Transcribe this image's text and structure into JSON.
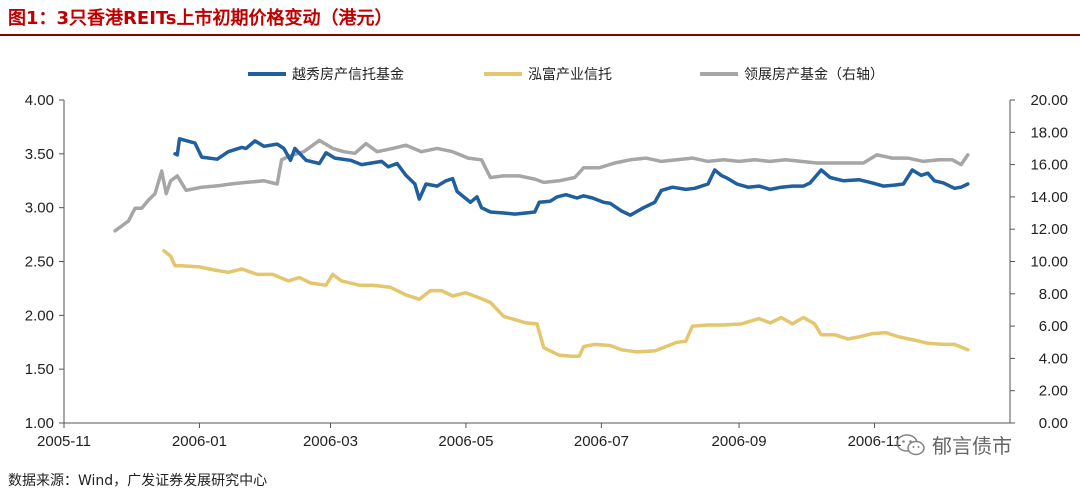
{
  "title": "图1：3只香港REITs上市初期价格变动（港元）",
  "source": "数据来源：Wind，广发证券发展研究中心",
  "watermark": "郁言债市",
  "chart_data": {
    "type": "line",
    "xlim": [
      "2005-11-01",
      "2007-01-01"
    ],
    "x_ticks": [
      "2005-11",
      "2006-01",
      "2006-03",
      "2006-05",
      "2006-07",
      "2006-09",
      "2006-11"
    ],
    "ylim_left": [
      1.0,
      4.0
    ],
    "y_ticks_left": [
      "1.00",
      "1.50",
      "2.00",
      "2.50",
      "3.00",
      "3.50",
      "4.00"
    ],
    "ylim_right": [
      0,
      20
    ],
    "y_ticks_right": [
      "0.00",
      "2.00",
      "4.00",
      "6.00",
      "8.00",
      "10.00",
      "12.00",
      "14.00",
      "16.00",
      "18.00",
      "20.00"
    ],
    "grid": false,
    "legend_position": "top",
    "series": [
      {
        "name": "越秀房产信托基金",
        "axis": "left",
        "color": "#1f5f9e",
        "points": [
          [
            "2005-12-21",
            3.5
          ],
          [
            "2005-12-22",
            3.49
          ],
          [
            "2005-12-23",
            3.64
          ],
          [
            "2005-12-30",
            3.6
          ],
          [
            "2006-01-02",
            3.47
          ],
          [
            "2006-01-09",
            3.45
          ],
          [
            "2006-01-14",
            3.52
          ],
          [
            "2006-01-20",
            3.56
          ],
          [
            "2006-01-22",
            3.55
          ],
          [
            "2006-01-26",
            3.62
          ],
          [
            "2006-01-30",
            3.57
          ],
          [
            "2006-02-05",
            3.59
          ],
          [
            "2006-02-08",
            3.55
          ],
          [
            "2006-02-11",
            3.44
          ],
          [
            "2006-02-13",
            3.55
          ],
          [
            "2006-02-18",
            3.44
          ],
          [
            "2006-02-24",
            3.41
          ],
          [
            "2006-02-27",
            3.51
          ],
          [
            "2006-03-03",
            3.46
          ],
          [
            "2006-03-10",
            3.44
          ],
          [
            "2006-03-15",
            3.4
          ],
          [
            "2006-03-24",
            3.43
          ],
          [
            "2006-03-27",
            3.38
          ],
          [
            "2006-03-31",
            3.41
          ],
          [
            "2006-04-04",
            3.3
          ],
          [
            "2006-04-08",
            3.22
          ],
          [
            "2006-04-10",
            3.08
          ],
          [
            "2006-04-13",
            3.22
          ],
          [
            "2006-04-18",
            3.2
          ],
          [
            "2006-04-22",
            3.25
          ],
          [
            "2006-04-25",
            3.27
          ],
          [
            "2006-04-27",
            3.15
          ],
          [
            "2006-04-30",
            3.1
          ],
          [
            "2006-05-03",
            3.05
          ],
          [
            "2006-05-06",
            3.1
          ],
          [
            "2006-05-08",
            3.0
          ],
          [
            "2006-05-12",
            2.96
          ],
          [
            "2006-05-18",
            2.95
          ],
          [
            "2006-05-23",
            2.94
          ],
          [
            "2006-05-28",
            2.95
          ],
          [
            "2006-06-01",
            2.96
          ],
          [
            "2006-06-03",
            3.05
          ],
          [
            "2006-06-08",
            3.06
          ],
          [
            "2006-06-11",
            3.1
          ],
          [
            "2006-06-15",
            3.12
          ],
          [
            "2006-06-20",
            3.09
          ],
          [
            "2006-06-23",
            3.11
          ],
          [
            "2006-06-27",
            3.09
          ],
          [
            "2006-07-02",
            3.05
          ],
          [
            "2006-07-05",
            3.04
          ],
          [
            "2006-07-10",
            2.97
          ],
          [
            "2006-07-14",
            2.93
          ],
          [
            "2006-07-20",
            3.0
          ],
          [
            "2006-07-25",
            3.05
          ],
          [
            "2006-07-28",
            3.16
          ],
          [
            "2006-08-02",
            3.19
          ],
          [
            "2006-08-08",
            3.17
          ],
          [
            "2006-08-12",
            3.18
          ],
          [
            "2006-08-18",
            3.22
          ],
          [
            "2006-08-21",
            3.35
          ],
          [
            "2006-08-24",
            3.3
          ],
          [
            "2006-08-27",
            3.27
          ],
          [
            "2006-08-31",
            3.22
          ],
          [
            "2006-09-05",
            3.19
          ],
          [
            "2006-09-10",
            3.2
          ],
          [
            "2006-09-15",
            3.17
          ],
          [
            "2006-09-20",
            3.19
          ],
          [
            "2006-09-25",
            3.2
          ],
          [
            "2006-09-30",
            3.2
          ],
          [
            "2006-10-03",
            3.23
          ],
          [
            "2006-10-08",
            3.35
          ],
          [
            "2006-10-12",
            3.28
          ],
          [
            "2006-10-18",
            3.25
          ],
          [
            "2006-10-25",
            3.26
          ],
          [
            "2006-10-31",
            3.23
          ],
          [
            "2006-11-05",
            3.2
          ],
          [
            "2006-11-10",
            3.21
          ],
          [
            "2006-11-14",
            3.22
          ],
          [
            "2006-11-18",
            3.35
          ],
          [
            "2006-11-22",
            3.3
          ],
          [
            "2006-11-25",
            3.32
          ],
          [
            "2006-11-28",
            3.25
          ],
          [
            "2006-12-02",
            3.23
          ],
          [
            "2006-12-07",
            3.18
          ],
          [
            "2006-12-10",
            3.19
          ],
          [
            "2006-12-13",
            3.22
          ]
        ]
      },
      {
        "name": "泓富产业信托",
        "axis": "left",
        "color": "#e4c66e",
        "points": [
          [
            "2005-12-16",
            2.6
          ],
          [
            "2005-12-19",
            2.55
          ],
          [
            "2005-12-21",
            2.46
          ],
          [
            "2005-12-24",
            2.46
          ],
          [
            "2006-01-01",
            2.45
          ],
          [
            "2006-01-08",
            2.42
          ],
          [
            "2006-01-14",
            2.4
          ],
          [
            "2006-01-20",
            2.43
          ],
          [
            "2006-01-27",
            2.38
          ],
          [
            "2006-02-03",
            2.38
          ],
          [
            "2006-02-10",
            2.32
          ],
          [
            "2006-02-15",
            2.35
          ],
          [
            "2006-02-20",
            2.3
          ],
          [
            "2006-02-27",
            2.28
          ],
          [
            "2006-03-02",
            2.38
          ],
          [
            "2006-03-06",
            2.32
          ],
          [
            "2006-03-14",
            2.28
          ],
          [
            "2006-03-20",
            2.28
          ],
          [
            "2006-03-28",
            2.26
          ],
          [
            "2006-04-04",
            2.19
          ],
          [
            "2006-04-10",
            2.15
          ],
          [
            "2006-04-15",
            2.23
          ],
          [
            "2006-04-20",
            2.23
          ],
          [
            "2006-04-25",
            2.18
          ],
          [
            "2006-05-01",
            2.21
          ],
          [
            "2006-05-06",
            2.17
          ],
          [
            "2006-05-12",
            2.12
          ],
          [
            "2006-05-18",
            1.99
          ],
          [
            "2006-05-23",
            1.96
          ],
          [
            "2006-05-28",
            1.93
          ],
          [
            "2006-06-02",
            1.92
          ],
          [
            "2006-06-05",
            1.7
          ],
          [
            "2006-06-08",
            1.67
          ],
          [
            "2006-06-12",
            1.63
          ],
          [
            "2006-06-18",
            1.62
          ],
          [
            "2006-06-21",
            1.62
          ],
          [
            "2006-06-23",
            1.71
          ],
          [
            "2006-06-28",
            1.73
          ],
          [
            "2006-07-05",
            1.72
          ],
          [
            "2006-07-10",
            1.68
          ],
          [
            "2006-07-17",
            1.66
          ],
          [
            "2006-07-25",
            1.67
          ],
          [
            "2006-07-30",
            1.71
          ],
          [
            "2006-08-04",
            1.75
          ],
          [
            "2006-08-08",
            1.76
          ],
          [
            "2006-08-11",
            1.9
          ],
          [
            "2006-08-18",
            1.91
          ],
          [
            "2006-08-25",
            1.91
          ],
          [
            "2006-09-02",
            1.92
          ],
          [
            "2006-09-10",
            1.97
          ],
          [
            "2006-09-15",
            1.93
          ],
          [
            "2006-09-20",
            1.98
          ],
          [
            "2006-09-25",
            1.92
          ],
          [
            "2006-09-30",
            1.98
          ],
          [
            "2006-10-05",
            1.92
          ],
          [
            "2006-10-08",
            1.82
          ],
          [
            "2006-10-14",
            1.82
          ],
          [
            "2006-10-20",
            1.78
          ],
          [
            "2006-10-25",
            1.8
          ],
          [
            "2006-10-31",
            1.83
          ],
          [
            "2006-11-06",
            1.84
          ],
          [
            "2006-11-12",
            1.8
          ],
          [
            "2006-11-19",
            1.77
          ],
          [
            "2006-11-25",
            1.74
          ],
          [
            "2006-12-02",
            1.73
          ],
          [
            "2006-12-07",
            1.73
          ],
          [
            "2006-12-13",
            1.68
          ]
        ]
      },
      {
        "name": "领展房产基金（右轴）",
        "axis": "right",
        "color": "#a6a6a6",
        "points": [
          [
            "2005-11-24",
            11.9
          ],
          [
            "2005-11-27",
            12.2
          ],
          [
            "2005-11-30",
            12.5
          ],
          [
            "2005-12-03",
            13.3
          ],
          [
            "2005-12-06",
            13.3
          ],
          [
            "2005-12-09",
            13.8
          ],
          [
            "2005-12-12",
            14.2
          ],
          [
            "2005-12-15",
            15.6
          ],
          [
            "2005-12-17",
            14.2
          ],
          [
            "2005-12-19",
            15.0
          ],
          [
            "2005-12-22",
            15.3
          ],
          [
            "2005-12-26",
            14.4
          ],
          [
            "2006-01-02",
            14.6
          ],
          [
            "2006-01-10",
            14.7
          ],
          [
            "2006-01-15",
            14.8
          ],
          [
            "2006-01-22",
            14.9
          ],
          [
            "2006-01-30",
            15.0
          ],
          [
            "2006-02-05",
            14.8
          ],
          [
            "2006-02-07",
            16.3
          ],
          [
            "2006-02-10",
            16.5
          ],
          [
            "2006-02-17",
            16.8
          ],
          [
            "2006-02-24",
            17.5
          ],
          [
            "2006-03-02",
            17.0
          ],
          [
            "2006-03-07",
            16.8
          ],
          [
            "2006-03-12",
            16.7
          ],
          [
            "2006-03-17",
            17.3
          ],
          [
            "2006-03-22",
            16.8
          ],
          [
            "2006-03-29",
            17.0
          ],
          [
            "2006-04-04",
            17.2
          ],
          [
            "2006-04-11",
            16.8
          ],
          [
            "2006-04-18",
            17.0
          ],
          [
            "2006-04-25",
            16.8
          ],
          [
            "2006-05-02",
            16.4
          ],
          [
            "2006-05-08",
            16.3
          ],
          [
            "2006-05-12",
            15.2
          ],
          [
            "2006-05-18",
            15.3
          ],
          [
            "2006-05-25",
            15.3
          ],
          [
            "2006-06-01",
            15.1
          ],
          [
            "2006-06-05",
            14.9
          ],
          [
            "2006-06-12",
            15.0
          ],
          [
            "2006-06-19",
            15.2
          ],
          [
            "2006-06-23",
            15.8
          ],
          [
            "2006-06-30",
            15.8
          ],
          [
            "2006-07-07",
            16.1
          ],
          [
            "2006-07-14",
            16.3
          ],
          [
            "2006-07-21",
            16.4
          ],
          [
            "2006-07-28",
            16.2
          ],
          [
            "2006-08-04",
            16.3
          ],
          [
            "2006-08-11",
            16.4
          ],
          [
            "2006-08-18",
            16.2
          ],
          [
            "2006-08-25",
            16.3
          ],
          [
            "2006-09-01",
            16.2
          ],
          [
            "2006-09-08",
            16.3
          ],
          [
            "2006-09-15",
            16.2
          ],
          [
            "2006-09-22",
            16.3
          ],
          [
            "2006-09-29",
            16.2
          ],
          [
            "2006-10-06",
            16.1
          ],
          [
            "2006-10-13",
            16.1
          ],
          [
            "2006-10-20",
            16.1
          ],
          [
            "2006-10-27",
            16.1
          ],
          [
            "2006-11-02",
            16.6
          ],
          [
            "2006-11-09",
            16.4
          ],
          [
            "2006-11-16",
            16.4
          ],
          [
            "2006-11-23",
            16.2
          ],
          [
            "2006-11-30",
            16.3
          ],
          [
            "2006-12-06",
            16.3
          ],
          [
            "2006-12-10",
            16.0
          ],
          [
            "2006-12-13",
            16.6
          ]
        ]
      }
    ]
  }
}
